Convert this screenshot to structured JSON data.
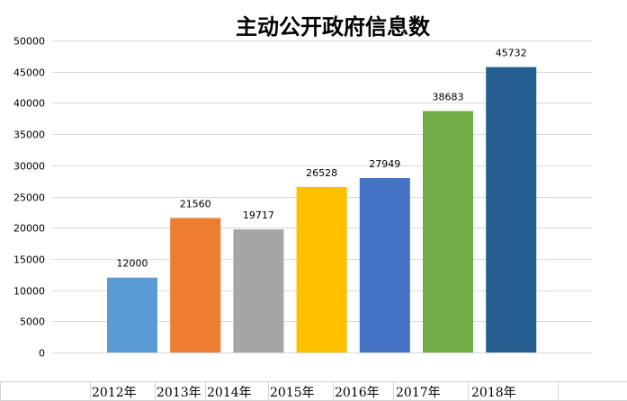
{
  "chart_data": {
    "type": "bar",
    "title": "主动公开政府信息数",
    "categories": [
      "2012年",
      "2013年",
      "2014年",
      "2015年",
      "2016年",
      "2017年",
      "2018年"
    ],
    "values": [
      12000,
      21560,
      19717,
      26528,
      27949,
      38683,
      45732
    ],
    "data_labels": [
      "12000",
      "21560",
      "19717",
      "26528",
      "27949",
      "38683",
      "45732"
    ],
    "colors": [
      "#5b9bd5",
      "#ed7d31",
      "#a5a5a5",
      "#ffc000",
      "#4472c4",
      "#70ad47",
      "#255e91"
    ],
    "ylim": [
      0,
      50000
    ],
    "yticks": [
      0,
      5000,
      10000,
      15000,
      20000,
      25000,
      30000,
      35000,
      40000,
      45000,
      50000
    ],
    "ytick_labels": [
      "0",
      "5000",
      "10000",
      "15000",
      "20000",
      "25000",
      "30000",
      "35000",
      "40000",
      "45000",
      "50000"
    ],
    "xlabel": "",
    "ylabel": "",
    "grid": true,
    "legend": "none"
  }
}
